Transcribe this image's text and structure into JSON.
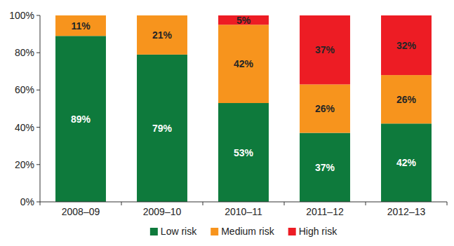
{
  "chart_data": {
    "type": "bar",
    "stacked": true,
    "data_labels": true,
    "grid": false,
    "legend": "bottom",
    "categories": [
      "2008–09",
      "2009–10",
      "2010–11",
      "2011–12",
      "2012–13"
    ],
    "series": [
      {
        "name": "Low risk",
        "color": "#0e7a3c",
        "values": [
          89,
          79,
          53,
          37,
          42
        ],
        "value_labels": [
          "89%",
          "79%",
          "53%",
          "37%",
          "42%"
        ]
      },
      {
        "name": "Medium risk",
        "color": "#f7941d",
        "values": [
          11,
          21,
          42,
          26,
          26
        ],
        "value_labels": [
          "11%",
          "21%",
          "42%",
          "26%",
          "26%"
        ]
      },
      {
        "name": "High risk",
        "color": "#ed1c24",
        "values": [
          null,
          null,
          5,
          37,
          32
        ],
        "value_labels": [
          null,
          null,
          "5%",
          "37%",
          "32%"
        ]
      }
    ],
    "ylim": [
      0,
      100
    ],
    "yticks": [
      {
        "value": 0,
        "label": "0%"
      },
      {
        "value": 20,
        "label": "20%"
      },
      {
        "value": 40,
        "label": "40%"
      },
      {
        "value": 60,
        "label": "60%"
      },
      {
        "value": 80,
        "label": "80%"
      },
      {
        "value": 100,
        "label": "100%"
      }
    ]
  }
}
